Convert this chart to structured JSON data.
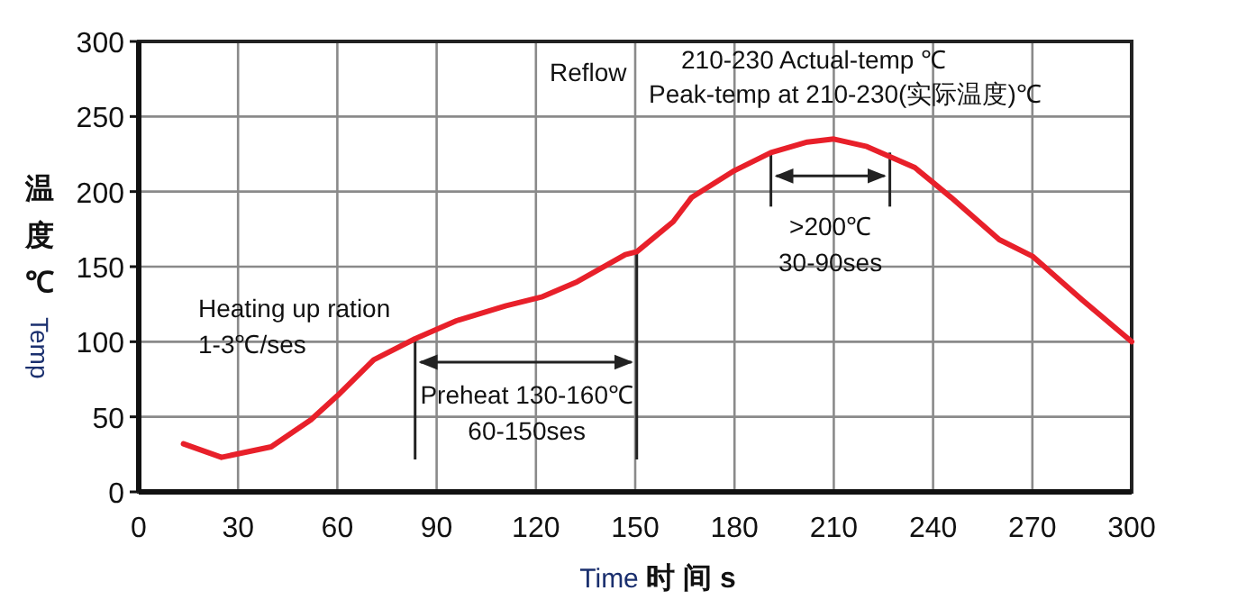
{
  "chart_data": {
    "type": "line",
    "xlabel": "Time 时 间 s",
    "ylabel": "温度℃ Temp",
    "x": [
      13.5,
      25,
      40,
      52,
      60,
      71,
      83.5,
      96,
      111,
      122,
      132.5,
      147,
      150.5,
      161.5,
      167,
      180,
      191,
      202,
      210,
      220,
      234.5,
      240,
      245.5,
      260,
      270,
      285,
      300
    ],
    "series": [
      {
        "color": "#e8202a",
        "values": [
          32,
          23,
          30,
          48,
          64,
          88,
          102,
          114,
          124,
          130,
          140,
          158,
          160,
          180,
          196,
          214,
          226,
          233,
          235,
          230,
          216,
          206,
          196,
          168,
          157,
          128,
          100
        ]
      }
    ],
    "xlim": [
      0,
      300
    ],
    "xticks": [
      0,
      30,
      60,
      90,
      120,
      150,
      180,
      210,
      240,
      270,
      300
    ],
    "ylim": [
      0,
      300
    ],
    "yticks": [
      0,
      50,
      100,
      150,
      200,
      250,
      300
    ],
    "grid": true,
    "marker": "none",
    "line_style": "solid",
    "annotations": [
      "Reflow",
      "210-230 Actual-temp ℃",
      "Peak-temp at 210-230(实际温度)℃",
      "Heating up ration\n1-3℃/ses",
      {
        "text": "Preheat 130-160℃\n60-150ses",
        "x": 83.5,
        "y": 102
      },
      {
        "text": ">200℃\n30-90ses",
        "x": 191,
        "y": 226
      }
    ]
  }
}
